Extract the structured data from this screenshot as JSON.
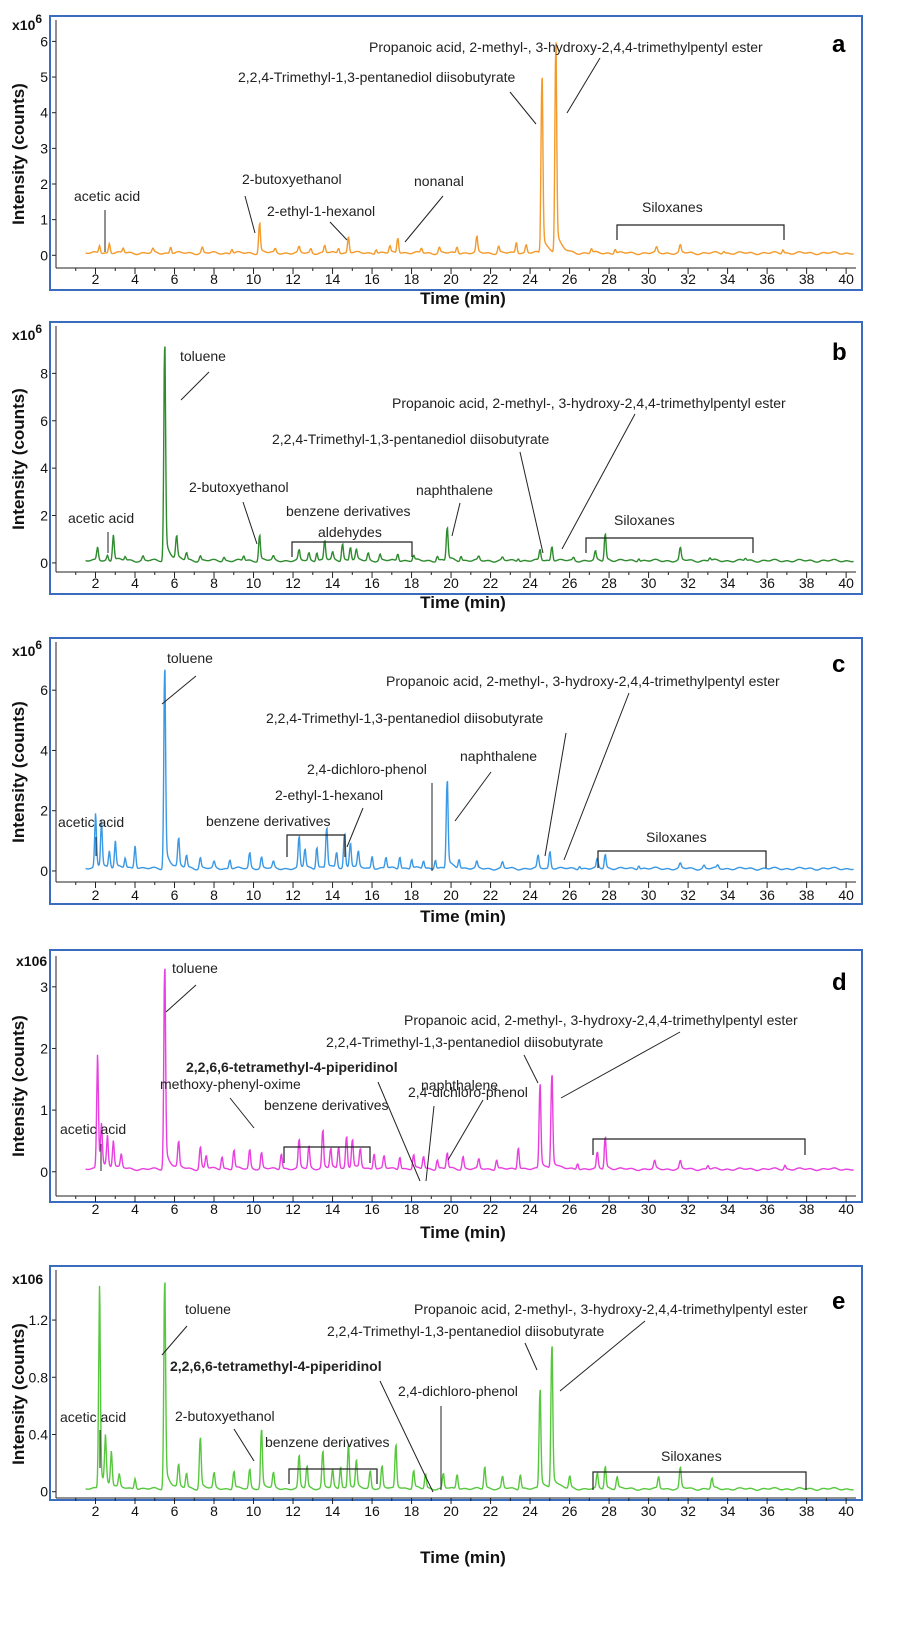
{
  "figure": {
    "x_axis_title": "Time (min)",
    "y_axis_title": "Intensity (counts)",
    "x_ticks": [
      "2",
      "4",
      "6",
      "8",
      "10",
      "12",
      "14",
      "16",
      "18",
      "20",
      "22",
      "24",
      "26",
      "28",
      "30",
      "32",
      "34",
      "36",
      "38",
      "40"
    ],
    "frame_color": "#3a6cc0"
  },
  "chart_data": [
    {
      "type": "line",
      "panel": "a",
      "y_multiplier": "x10",
      "y_multiplier_exp": "6",
      "xlim": [
        0,
        40.5
      ],
      "ylim": [
        -0.3,
        6.6
      ],
      "y_ticks": [
        0,
        1,
        2,
        3,
        4,
        5,
        6
      ],
      "y_tick_labels": [
        "0",
        "1",
        "2",
        "3",
        "4",
        "5",
        "6"
      ],
      "color": "#f39a2b",
      "baseline": 0.02,
      "peaks": [
        [
          2.2,
          0.2
        ],
        [
          2.7,
          0.25
        ],
        [
          3.4,
          0.12
        ],
        [
          4.9,
          0.1
        ],
        [
          5.8,
          0.18
        ],
        [
          7.4,
          0.15
        ],
        [
          8.9,
          0.12
        ],
        [
          10.3,
          0.82
        ],
        [
          11.1,
          0.1
        ],
        [
          12.3,
          0.15
        ],
        [
          12.9,
          0.12
        ],
        [
          13.6,
          0.2
        ],
        [
          14.3,
          0.15
        ],
        [
          14.8,
          0.45
        ],
        [
          16.2,
          0.12
        ],
        [
          16.9,
          0.18
        ],
        [
          17.3,
          0.42
        ],
        [
          18.5,
          0.13
        ],
        [
          19.4,
          0.15
        ],
        [
          20.3,
          0.18
        ],
        [
          21.3,
          0.42
        ],
        [
          22.4,
          0.18
        ],
        [
          23.3,
          0.3
        ],
        [
          23.8,
          0.22
        ],
        [
          24.6,
          4.85
        ],
        [
          25.3,
          5.8
        ],
        [
          27.1,
          0.12
        ],
        [
          28.3,
          0.12
        ],
        [
          30.4,
          0.14
        ],
        [
          31.6,
          0.2
        ],
        [
          33.8,
          0.06
        ],
        [
          36.8,
          0.1
        ]
      ],
      "annotations": [
        {
          "text": "acetic acid",
          "color": "#222222",
          "bold": false
        },
        {
          "text": "2-butoxyethanol",
          "color": "#222222",
          "bold": false
        },
        {
          "text": "2-ethyl-1-hexanol",
          "color": "#222222",
          "bold": false
        },
        {
          "text": "nonanal",
          "color": "#222222",
          "bold": false
        },
        {
          "text": "2,2,4-Trimethyl-1,3-pentanediol diisobutyrate",
          "color": "#222222",
          "bold": false
        },
        {
          "text": "Propanoic acid, 2-methyl-, 3-hydroxy-2,4,4-trimethylpentyl ester",
          "color": "#222222",
          "bold": false
        },
        {
          "text": "Siloxanes",
          "color": "#222222",
          "bold": false
        }
      ]
    },
    {
      "type": "line",
      "panel": "b",
      "y_multiplier": "x10",
      "y_multiplier_exp": "6",
      "xlim": [
        0,
        40.5
      ],
      "ylim": [
        -0.3,
        10
      ],
      "y_ticks": [
        0,
        2,
        4,
        6,
        8
      ],
      "y_tick_labels": [
        "0",
        "2",
        "4",
        "6",
        "8"
      ],
      "color": "#2e8b2e",
      "baseline": 0.03,
      "peaks": [
        [
          2.1,
          0.5
        ],
        [
          2.6,
          0.2
        ],
        [
          2.9,
          1.0
        ],
        [
          3.5,
          0.15
        ],
        [
          4.4,
          0.18
        ],
        [
          5.5,
          8.9
        ],
        [
          6.1,
          0.9
        ],
        [
          6.6,
          0.3
        ],
        [
          7.3,
          0.2
        ],
        [
          8.5,
          0.15
        ],
        [
          9.5,
          0.2
        ],
        [
          10.3,
          1.05
        ],
        [
          11.0,
          0.15
        ],
        [
          12.3,
          0.4
        ],
        [
          12.8,
          0.3
        ],
        [
          13.2,
          0.35
        ],
        [
          13.6,
          0.8
        ],
        [
          14.0,
          0.3
        ],
        [
          14.5,
          0.7
        ],
        [
          14.9,
          0.55
        ],
        [
          15.2,
          0.4
        ],
        [
          15.8,
          0.3
        ],
        [
          16.4,
          0.25
        ],
        [
          17.3,
          0.3
        ],
        [
          18.1,
          0.2
        ],
        [
          19.3,
          0.2
        ],
        [
          19.8,
          1.35
        ],
        [
          20.5,
          0.2
        ],
        [
          21.4,
          0.15
        ],
        [
          22.6,
          0.12
        ],
        [
          23.4,
          0.12
        ],
        [
          24.5,
          0.45
        ],
        [
          25.1,
          0.6
        ],
        [
          26.2,
          0.12
        ],
        [
          27.3,
          0.35
        ],
        [
          27.8,
          1.1
        ],
        [
          29.5,
          0.12
        ],
        [
          31.6,
          0.5
        ],
        [
          33.1,
          0.12
        ],
        [
          34.9,
          0.1
        ]
      ],
      "annotations": [
        {
          "text": "acetic acid",
          "color": "#222222",
          "bold": false
        },
        {
          "text": "toluene",
          "color": "#222222",
          "bold": false
        },
        {
          "text": "2-butoxyethanol",
          "color": "#222222",
          "bold": false
        },
        {
          "text": "benzene derivatives",
          "color": "#222222",
          "bold": false
        },
        {
          "text": "aldehydes",
          "color": "#222222",
          "bold": false
        },
        {
          "text": "naphthalene",
          "color": "#222222",
          "bold": false
        },
        {
          "text": "2,2,4-Trimethyl-1,3-pentanediol diisobutyrate",
          "color": "#222222",
          "bold": false
        },
        {
          "text": "Propanoic acid, 2-methyl-, 3-hydroxy-2,4,4-trimethylpentyl ester",
          "color": "#222222",
          "bold": false
        },
        {
          "text": "Siloxanes",
          "color": "#222222",
          "bold": false
        }
      ]
    },
    {
      "type": "line",
      "panel": "c",
      "y_multiplier": "x10",
      "y_multiplier_exp": "6",
      "xlim": [
        0,
        40.5
      ],
      "ylim": [
        -0.3,
        7.6
      ],
      "y_ticks": [
        0,
        2,
        4,
        6
      ],
      "y_tick_labels": [
        "0",
        "2",
        "4",
        "6"
      ],
      "color": "#3a98e4",
      "baseline": 0.03,
      "peaks": [
        [
          2.0,
          1.6
        ],
        [
          2.3,
          1.4
        ],
        [
          2.7,
          0.5
        ],
        [
          3.0,
          0.8
        ],
        [
          3.5,
          0.3
        ],
        [
          4.0,
          0.7
        ],
        [
          5.5,
          6.5
        ],
        [
          6.2,
          0.9
        ],
        [
          6.6,
          0.4
        ],
        [
          7.3,
          0.35
        ],
        [
          8.0,
          0.2
        ],
        [
          8.8,
          0.3
        ],
        [
          9.8,
          0.5
        ],
        [
          10.4,
          0.35
        ],
        [
          11.0,
          0.2
        ],
        [
          12.3,
          1.0
        ],
        [
          12.6,
          0.6
        ],
        [
          13.2,
          0.7
        ],
        [
          13.7,
          1.3
        ],
        [
          14.2,
          0.5
        ],
        [
          14.6,
          1.1
        ],
        [
          14.9,
          0.8
        ],
        [
          15.3,
          0.5
        ],
        [
          16.0,
          0.4
        ],
        [
          16.7,
          0.35
        ],
        [
          17.4,
          0.4
        ],
        [
          18.0,
          0.3
        ],
        [
          18.6,
          0.25
        ],
        [
          19.2,
          0.3
        ],
        [
          19.8,
          2.85
        ],
        [
          20.4,
          0.3
        ],
        [
          21.3,
          0.2
        ],
        [
          22.6,
          0.2
        ],
        [
          24.4,
          0.4
        ],
        [
          25.0,
          0.55
        ],
        [
          26.5,
          0.1
        ],
        [
          27.4,
          0.3
        ],
        [
          27.8,
          0.45
        ],
        [
          29.5,
          0.12
        ],
        [
          31.6,
          0.15
        ],
        [
          32.8,
          0.1
        ],
        [
          33.5,
          0.1
        ]
      ],
      "annotations": [
        {
          "text": "acetic acid",
          "color": "#222222",
          "bold": false
        },
        {
          "text": "toluene",
          "color": "#222222",
          "bold": false
        },
        {
          "text": "benzene derivatives",
          "color": "#222222",
          "bold": false
        },
        {
          "text": "2-ethyl-1-hexanol",
          "color": "#222222",
          "bold": false
        },
        {
          "text": "2,4-dichloro-phenol",
          "color": "#5a9a3a",
          "bold": false
        },
        {
          "text": "naphthalene",
          "color": "#222222",
          "bold": false
        },
        {
          "text": "2,2,4-Trimethyl-1,3-pentanediol diisobutyrate",
          "color": "#222222",
          "bold": false
        },
        {
          "text": "Propanoic acid, 2-methyl-, 3-hydroxy-2,4,4-trimethylpentyl ester",
          "color": "#222222",
          "bold": false
        },
        {
          "text": "Siloxanes",
          "color": "#222222",
          "bold": false
        }
      ]
    },
    {
      "type": "line",
      "panel": "d",
      "y_multiplier": "x106",
      "y_multiplier_exp": "",
      "xlim": [
        0,
        40.5
      ],
      "ylim": [
        -0.15,
        3.5
      ],
      "y_ticks": [
        0,
        1,
        2,
        3
      ],
      "y_tick_labels": [
        "0",
        "1",
        "2",
        "3"
      ],
      "color": "#e83fe0",
      "baseline": 0.02,
      "peaks": [
        [
          2.1,
          1.65
        ],
        [
          2.3,
          0.6
        ],
        [
          2.6,
          0.45
        ],
        [
          2.9,
          0.4
        ],
        [
          3.3,
          0.2
        ],
        [
          5.5,
          3.2
        ],
        [
          6.2,
          0.4
        ],
        [
          7.3,
          0.35
        ],
        [
          7.6,
          0.2
        ],
        [
          8.4,
          0.2
        ],
        [
          9.0,
          0.3
        ],
        [
          9.8,
          0.3
        ],
        [
          10.4,
          0.25
        ],
        [
          11.4,
          0.25
        ],
        [
          12.3,
          0.45
        ],
        [
          12.8,
          0.35
        ],
        [
          13.5,
          0.6
        ],
        [
          13.9,
          0.3
        ],
        [
          14.3,
          0.35
        ],
        [
          14.7,
          0.5
        ],
        [
          15.0,
          0.45
        ],
        [
          15.4,
          0.3
        ],
        [
          16.1,
          0.25
        ],
        [
          16.6,
          0.2
        ],
        [
          17.4,
          0.2
        ],
        [
          18.1,
          0.22
        ],
        [
          18.6,
          0.2
        ],
        [
          19.3,
          0.15
        ],
        [
          19.8,
          0.25
        ],
        [
          20.6,
          0.2
        ],
        [
          21.4,
          0.15
        ],
        [
          22.3,
          0.15
        ],
        [
          23.4,
          0.35
        ],
        [
          24.5,
          1.35
        ],
        [
          25.1,
          1.5
        ],
        [
          26.4,
          0.1
        ],
        [
          27.4,
          0.25
        ],
        [
          27.8,
          0.5
        ],
        [
          30.3,
          0.12
        ],
        [
          31.6,
          0.12
        ],
        [
          33.0,
          0.06
        ],
        [
          36.9,
          0.06
        ]
      ],
      "annotations": [
        {
          "text": "acetic acid",
          "color": "#222222",
          "bold": false
        },
        {
          "text": "toluene",
          "color": "#222222",
          "bold": false
        },
        {
          "text": "methoxy-phenyl-oxime",
          "color": "#222222",
          "bold": false
        },
        {
          "text": "benzene derivatives",
          "color": "#222222",
          "bold": false
        },
        {
          "text": "2,2,6,6-tetramethyl-4-piperidinol",
          "color": "#e06a1a",
          "bold": true
        },
        {
          "text": "2,4-dichloro-phenol",
          "color": "#5a9a3a",
          "bold": false
        },
        {
          "text": "naphthalene",
          "color": "#222222",
          "bold": false
        },
        {
          "text": "2,2,4-Trimethyl-1,3-pentanediol diisobutyrate",
          "color": "#222222",
          "bold": false
        },
        {
          "text": "Propanoic acid, 2-methyl-, 3-hydroxy-2,4,4-trimethylpentyl ester",
          "color": "#222222",
          "bold": false
        },
        {
          "text": "Siloxanes",
          "color": "#222222",
          "bold": false
        }
      ]
    },
    {
      "type": "line",
      "panel": "e",
      "y_multiplier": "x106",
      "y_multiplier_exp": "",
      "xlim": [
        0,
        40.5
      ],
      "ylim": [
        -0.03,
        1.55
      ],
      "y_ticks": [
        0,
        0.4,
        0.8,
        1.2
      ],
      "y_tick_labels": [
        "0",
        "0.4",
        "0.8",
        "1.2"
      ],
      "color": "#57c83e",
      "baseline": 0.01,
      "peaks": [
        [
          2.2,
          1.27
        ],
        [
          2.5,
          0.3
        ],
        [
          2.8,
          0.22
        ],
        [
          3.2,
          0.08
        ],
        [
          4.0,
          0.07
        ],
        [
          5.5,
          1.42
        ],
        [
          6.2,
          0.15
        ],
        [
          6.6,
          0.1
        ],
        [
          7.3,
          0.35
        ],
        [
          8.0,
          0.1
        ],
        [
          9.0,
          0.12
        ],
        [
          9.8,
          0.13
        ],
        [
          10.4,
          0.4
        ],
        [
          11.0,
          0.1
        ],
        [
          12.3,
          0.22
        ],
        [
          12.7,
          0.15
        ],
        [
          13.5,
          0.25
        ],
        [
          14.0,
          0.12
        ],
        [
          14.4,
          0.15
        ],
        [
          14.8,
          0.3
        ],
        [
          15.2,
          0.18
        ],
        [
          15.9,
          0.12
        ],
        [
          16.5,
          0.15
        ],
        [
          17.2,
          0.3
        ],
        [
          18.1,
          0.12
        ],
        [
          18.7,
          0.1
        ],
        [
          19.6,
          0.1
        ],
        [
          20.3,
          0.1
        ],
        [
          21.7,
          0.15
        ],
        [
          22.6,
          0.08
        ],
        [
          23.5,
          0.1
        ],
        [
          24.5,
          0.68
        ],
        [
          25.1,
          0.98
        ],
        [
          26.0,
          0.08
        ],
        [
          27.4,
          0.1
        ],
        [
          27.8,
          0.15
        ],
        [
          28.4,
          0.08
        ],
        [
          30.5,
          0.08
        ],
        [
          31.6,
          0.14
        ],
        [
          33.2,
          0.07
        ]
      ],
      "annotations": [
        {
          "text": "acetic acid",
          "color": "#222222",
          "bold": false
        },
        {
          "text": "toluene",
          "color": "#222222",
          "bold": false
        },
        {
          "text": "2-butoxyethanol",
          "color": "#222222",
          "bold": false
        },
        {
          "text": "benzene derivatives",
          "color": "#222222",
          "bold": false
        },
        {
          "text": "2,2,6,6-tetramethyl-4-piperidinol",
          "color": "#e06a1a",
          "bold": true
        },
        {
          "text": "2,4-dichloro-phenol",
          "color": "#5a9a3a",
          "bold": false
        },
        {
          "text": "2,2,4-Trimethyl-1,3-pentanediol diisobutyrate",
          "color": "#222222",
          "bold": false
        },
        {
          "text": "Propanoic acid, 2-methyl-, 3-hydroxy-2,4,4-trimethylpentyl ester",
          "color": "#222222",
          "bold": false
        },
        {
          "text": "Siloxanes",
          "color": "#222222",
          "bold": false
        }
      ]
    }
  ]
}
